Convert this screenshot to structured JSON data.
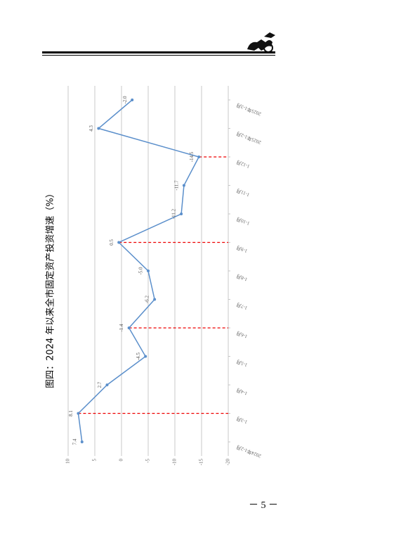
{
  "page_number": "－ 5 －",
  "chart_data": {
    "type": "line",
    "title": "图四：2024 年以来全市固定资产投资增速（%）",
    "categories": [
      "2024年1-2月",
      "1-3月",
      "1-4月",
      "1-5月",
      "1-6月",
      "1-7月",
      "1-8月",
      "1-9月",
      "1-10月",
      "1-11月",
      "1-12月",
      "2025年1-2月",
      "2025年1-3月"
    ],
    "values": [
      7.4,
      8.1,
      2.7,
      -4.5,
      -1.4,
      -6.2,
      -5.0,
      0.5,
      -11.2,
      -11.7,
      -14.5,
      4.3,
      -2.0
    ],
    "value_labels": [
      "7.4",
      "8.1",
      "2.7",
      "-4.5",
      "-1.4",
      "-6.2",
      "-5.0",
      "0.5",
      "-11.2",
      "-11.7",
      "-14.5",
      "4.3",
      "-2.0"
    ],
    "color": "#5b8fcb",
    "ylim": [
      -20,
      10
    ],
    "yticks": [
      10,
      5,
      0,
      -5,
      -10,
      -15,
      -20
    ],
    "grid": true
  }
}
